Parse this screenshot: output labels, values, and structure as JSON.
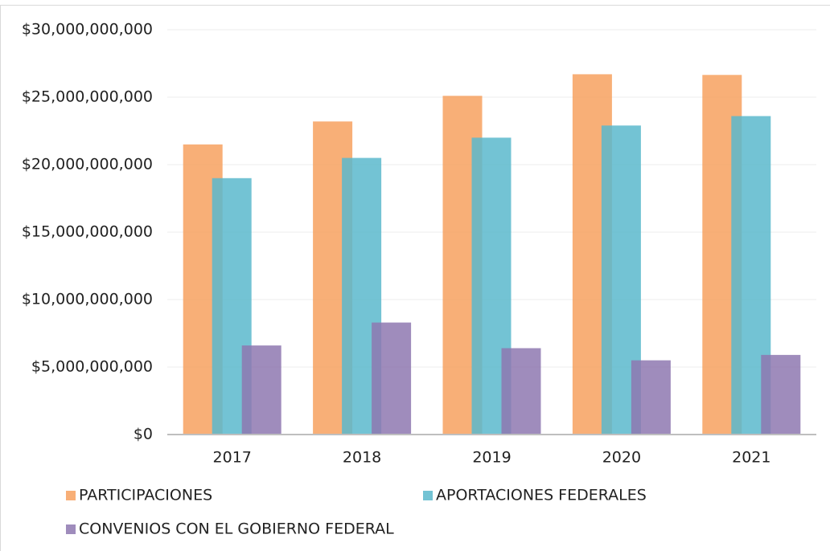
{
  "chart_data": {
    "type": "bar",
    "categories": [
      "2017",
      "2018",
      "2019",
      "2020",
      "2021"
    ],
    "series": [
      {
        "name": "PARTICIPACIONES",
        "color": "#f7a15f",
        "values": [
          21500000000,
          23200000000,
          25100000000,
          26700000000,
          26650000000
        ]
      },
      {
        "name": "APORTACIONES FEDERALES",
        "color": "#5bb8cc",
        "values": [
          19000000000,
          20500000000,
          22000000000,
          22900000000,
          23600000000
        ]
      },
      {
        "name": "CONVENIOS CON EL GOBIERNO FEDERAL",
        "color": "#8e78b0",
        "values": [
          6600000000,
          8300000000,
          6400000000,
          5500000000,
          5900000000
        ]
      }
    ],
    "ylim": [
      0,
      30000000000
    ],
    "yticks": [
      {
        "value": 0,
        "label": "$0"
      },
      {
        "value": 5000000000,
        "label": "$5,000,000,000"
      },
      {
        "value": 10000000000,
        "label": "$10,000,000,000"
      },
      {
        "value": 15000000000,
        "label": "$15,000,000,000"
      },
      {
        "value": 20000000000,
        "label": "$20,000,000,000"
      },
      {
        "value": 25000000000,
        "label": "$25,000,000,000"
      },
      {
        "value": 30000000000,
        "label": "$30,000,000,000"
      }
    ],
    "grid": true,
    "legend": "bottom"
  }
}
